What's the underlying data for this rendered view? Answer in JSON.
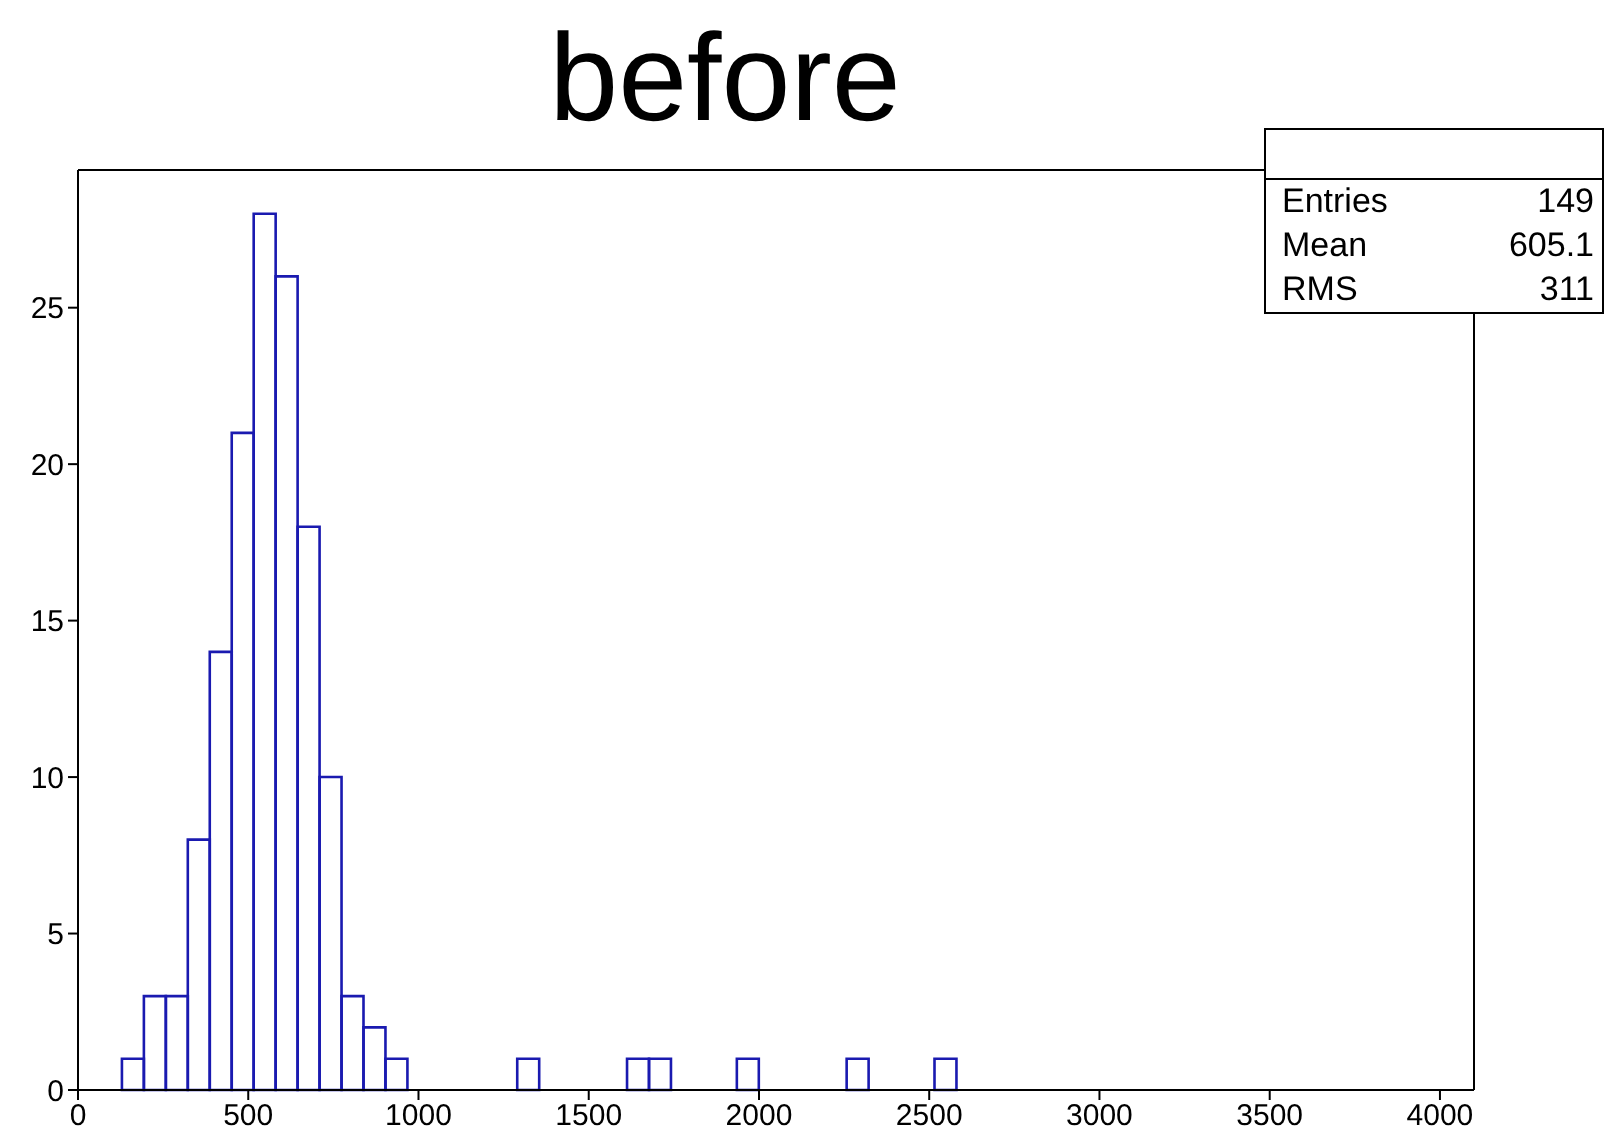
{
  "chart_data": {
    "type": "histogram",
    "title": "before",
    "bins": [
      129,
      193.5,
      258,
      322.5,
      387,
      451.5,
      516,
      580.5,
      645,
      709.5,
      774,
      838.5,
      903,
      967.5,
      1032,
      1096.5,
      1161,
      1225.5,
      1290,
      1354.5,
      1419,
      1483.5,
      1548,
      1612.5,
      1677,
      1741.5,
      1806,
      1870.5,
      1935,
      1999.5,
      2064,
      2128.5,
      2193,
      2257.5,
      2322,
      2386.5,
      2451,
      2515.5,
      2580
    ],
    "values": [
      1,
      3,
      3,
      8,
      14,
      21,
      28,
      26,
      18,
      10,
      3,
      2,
      1,
      0,
      0,
      0,
      0,
      0,
      1,
      0,
      0,
      0,
      0,
      1,
      1,
      0,
      0,
      0,
      1,
      0,
      0,
      0,
      0,
      1,
      0,
      0,
      0,
      1
    ],
    "color": "#1a1ab0",
    "xlim": [
      0,
      4100
    ],
    "xticks": [
      0,
      500,
      1000,
      1500,
      2000,
      2500,
      3000,
      3500,
      4000
    ],
    "ylim": [
      0,
      29.4
    ],
    "yticks": [
      0,
      5,
      10,
      15,
      20,
      25
    ],
    "annotations": [
      "Entries",
      "149",
      "Mean",
      "605.1",
      "RMS",
      "311"
    ]
  }
}
